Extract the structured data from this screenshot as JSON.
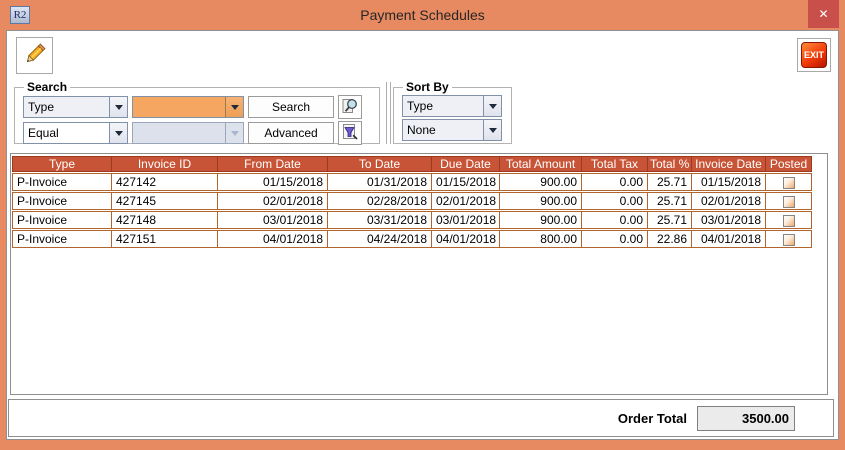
{
  "window": {
    "title": "Payment Schedules",
    "app_icon_text": "R2",
    "close_glyph": "✕"
  },
  "toolbar": {
    "exit_label": "EXIT"
  },
  "search": {
    "legend": "Search",
    "field_selected": "Type",
    "operator_selected": "Equal",
    "value_selected": "",
    "value2_selected": "",
    "search_button_label": "Search",
    "advanced_button_label": "Advanced"
  },
  "sort_by": {
    "legend": "Sort By",
    "primary_selected": "Type",
    "secondary_selected": "None"
  },
  "table": {
    "columns": [
      "Type",
      "Invoice ID",
      "From Date",
      "To Date",
      "Due Date",
      "Total Amount",
      "Total Tax",
      "Total %",
      "Invoice Date",
      "Posted"
    ],
    "rows": [
      {
        "type": "P-Invoice",
        "invoice_id": "427142",
        "from_date": "01/15/2018",
        "to_date": "01/31/2018",
        "due_date": "01/15/2018",
        "total_amount": "900.00",
        "total_tax": "0.00",
        "total_pct": "25.71",
        "invoice_date": "01/15/2018",
        "posted": false
      },
      {
        "type": "P-Invoice",
        "invoice_id": "427145",
        "from_date": "02/01/2018",
        "to_date": "02/28/2018",
        "due_date": "02/01/2018",
        "total_amount": "900.00",
        "total_tax": "0.00",
        "total_pct": "25.71",
        "invoice_date": "02/01/2018",
        "posted": false
      },
      {
        "type": "P-Invoice",
        "invoice_id": "427148",
        "from_date": "03/01/2018",
        "to_date": "03/31/2018",
        "due_date": "03/01/2018",
        "total_amount": "900.00",
        "total_tax": "0.00",
        "total_pct": "25.71",
        "invoice_date": "03/01/2018",
        "posted": false
      },
      {
        "type": "P-Invoice",
        "invoice_id": "427151",
        "from_date": "04/01/2018",
        "to_date": "04/24/2018",
        "due_date": "04/01/2018",
        "total_amount": "800.00",
        "total_tax": "0.00",
        "total_pct": "22.86",
        "invoice_date": "04/01/2018",
        "posted": false
      }
    ]
  },
  "footer": {
    "label": "Order Total",
    "value": "3500.00"
  },
  "colors": {
    "titlebar_orange": "#e78a61",
    "close_button_red": "#c9504a",
    "grid_header_bg": "#c75436",
    "grid_line_brown": "#b1652c",
    "search_value_highlight": "#f5a661",
    "exit_button_red": "#e23b12",
    "total_field_bg": "#ebebeb"
  }
}
